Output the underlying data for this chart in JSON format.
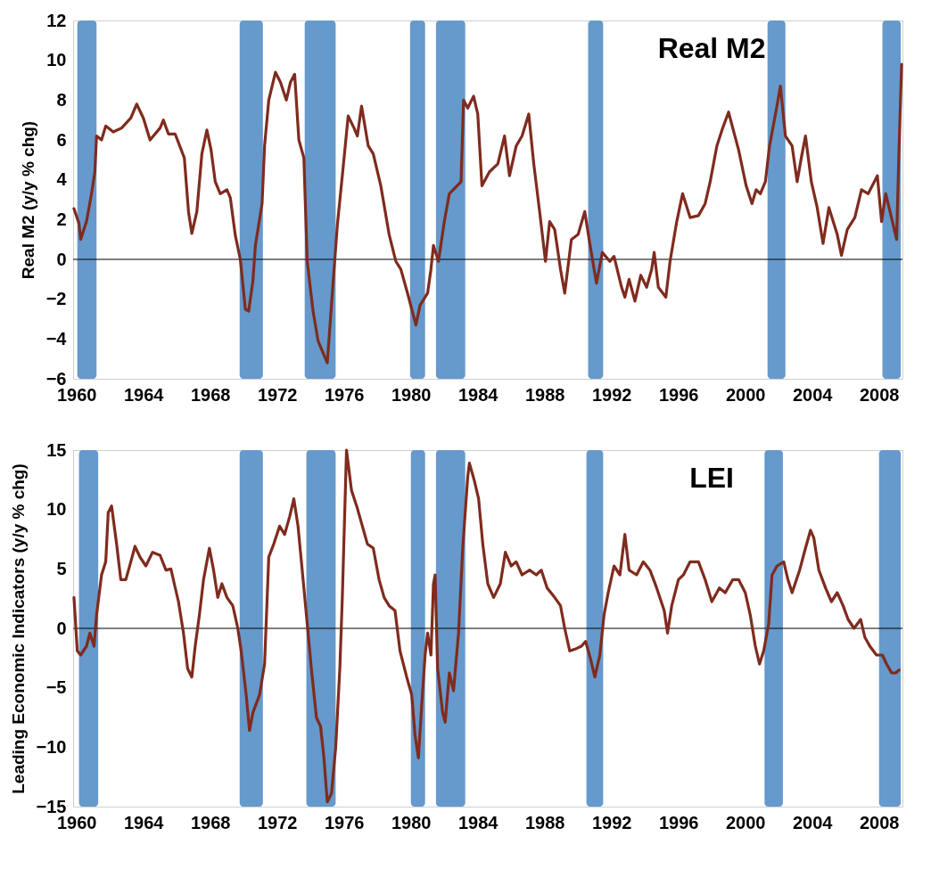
{
  "chart_data": [
    {
      "type": "line",
      "title": "Real M2",
      "ylabel": "Real M2 (y/y % chg)",
      "xlim": [
        1959.8,
        2009.4
      ],
      "xticks": [
        1960,
        1964,
        1968,
        1972,
        1976,
        1980,
        1984,
        1988,
        1992,
        1996,
        2000,
        2004,
        2008
      ],
      "ylim": [
        -6,
        12
      ],
      "yticks": [
        -6,
        -4,
        -2,
        0,
        2,
        4,
        6,
        8,
        10,
        12
      ],
      "ref_lines": [
        {
          "axis": "y",
          "value": 0,
          "color": "#000000"
        }
      ],
      "bands": [
        {
          "axis": "x",
          "from": 1960.05,
          "to": 1961.2,
          "color": "#6699cc"
        },
        {
          "axis": "x",
          "from": 1969.76,
          "to": 1971.15,
          "color": "#6699cc"
        },
        {
          "axis": "x",
          "from": 1973.65,
          "to": 1975.5,
          "color": "#6699cc"
        },
        {
          "axis": "x",
          "from": 1979.95,
          "to": 1980.85,
          "color": "#6699cc"
        },
        {
          "axis": "x",
          "from": 1981.5,
          "to": 1983.25,
          "color": "#6699cc"
        },
        {
          "axis": "x",
          "from": 1990.6,
          "to": 1991.5,
          "color": "#6699cc"
        },
        {
          "axis": "x",
          "from": 2001.33,
          "to": 2002.4,
          "color": "#6699cc"
        },
        {
          "axis": "x",
          "from": 2008.2,
          "to": 2009.3,
          "color": "#6699cc"
        }
      ],
      "series": [
        {
          "color": "#7f2b1e",
          "x": [
            1959.85,
            1960.15,
            1960.25,
            1960.6,
            1960.9,
            1961.1,
            1961.2,
            1961.5,
            1961.75,
            1962.2,
            1962.7,
            1963.25,
            1963.6,
            1964.0,
            1964.4,
            1965.0,
            1965.2,
            1965.5,
            1965.9,
            1966.45,
            1966.7,
            1966.9,
            1967.2,
            1967.5,
            1967.8,
            1968.05,
            1968.3,
            1968.6,
            1969.0,
            1969.2,
            1969.5,
            1969.8,
            1970.1,
            1970.3,
            1970.55,
            1970.7,
            1971.1,
            1971.25,
            1971.5,
            1971.9,
            1972.2,
            1972.55,
            1972.8,
            1973.05,
            1973.3,
            1973.6,
            1973.8,
            1974.15,
            1974.45,
            1974.8,
            1975.0,
            1975.25,
            1975.6,
            1975.9,
            1976.25,
            1976.6,
            1976.8,
            1977.05,
            1977.45,
            1977.75,
            1978.2,
            1978.7,
            1979.1,
            1979.4,
            1979.8,
            1980.3,
            1980.55,
            1981.0,
            1981.2,
            1981.35,
            1981.65,
            1982.0,
            1982.3,
            1982.65,
            1983.0,
            1983.15,
            1983.4,
            1983.75,
            1984.0,
            1984.25,
            1984.7,
            1985.2,
            1985.6,
            1985.9,
            1986.3,
            1986.65,
            1987.05,
            1987.35,
            1987.7,
            1988.05,
            1988.3,
            1988.6,
            1988.95,
            1989.2,
            1989.6,
            1990.0,
            1990.4,
            1990.7,
            1991.1,
            1991.45,
            1991.9,
            1992.15,
            1992.6,
            1992.8,
            1993.05,
            1993.4,
            1993.75,
            1994.1,
            1994.4,
            1994.55,
            1994.8,
            1995.25,
            1995.5,
            1995.9,
            1996.25,
            1996.7,
            1997.2,
            1997.6,
            1997.9,
            1998.3,
            1998.65,
            1999.0,
            1999.25,
            1999.6,
            2000.05,
            2000.4,
            2000.65,
            2000.9,
            2001.2,
            2001.45,
            2001.85,
            2002.1,
            2002.4,
            2002.8,
            2003.1,
            2003.35,
            2003.6,
            2003.95,
            2004.3,
            2004.65,
            2005.0,
            2005.5,
            2005.75,
            2006.1,
            2006.55,
            2006.95,
            2007.35,
            2007.9,
            2008.15,
            2008.4,
            2008.8,
            2009.05,
            2009.2,
            2009.35
          ],
          "values": [
            2.55,
            1.8,
            1.0,
            1.9,
            3.3,
            4.4,
            6.2,
            6.0,
            6.7,
            6.4,
            6.6,
            7.1,
            7.8,
            7.1,
            6.0,
            6.6,
            7.0,
            6.3,
            6.3,
            5.1,
            2.4,
            1.3,
            2.4,
            5.3,
            6.5,
            5.5,
            3.9,
            3.3,
            3.5,
            3.1,
            1.2,
            0.0,
            -2.5,
            -2.6,
            -1.1,
            0.7,
            2.8,
            5.7,
            8.0,
            9.4,
            8.9,
            8.0,
            8.9,
            9.3,
            6.0,
            5.1,
            -0.1,
            -2.6,
            -4.1,
            -4.8,
            -5.2,
            -2.3,
            1.7,
            4.2,
            7.2,
            6.6,
            6.2,
            7.7,
            5.7,
            5.3,
            3.7,
            1.25,
            -0.1,
            -0.5,
            -1.7,
            -3.3,
            -2.3,
            -1.7,
            -0.5,
            0.7,
            -0.1,
            1.9,
            3.3,
            3.6,
            3.9,
            8.0,
            7.6,
            8.2,
            7.3,
            3.7,
            4.4,
            4.8,
            6.2,
            4.2,
            5.7,
            6.2,
            7.3,
            4.8,
            2.4,
            -0.1,
            1.9,
            1.5,
            -0.5,
            -1.7,
            1.0,
            1.25,
            2.4,
            0.8,
            -1.2,
            0.35,
            -0.1,
            0.15,
            -1.4,
            -1.9,
            -1.0,
            -2.1,
            -0.8,
            -1.4,
            -0.5,
            0.35,
            -1.4,
            -1.9,
            -0.1,
            1.9,
            3.3,
            2.1,
            2.2,
            2.8,
            3.9,
            5.7,
            6.6,
            7.4,
            6.6,
            5.5,
            3.7,
            2.8,
            3.5,
            3.3,
            3.9,
            5.7,
            7.5,
            8.7,
            6.2,
            5.7,
            3.9,
            5.1,
            6.2,
            3.9,
            2.6,
            0.8,
            2.6,
            1.25,
            0.2,
            1.5,
            2.1,
            3.5,
            3.3,
            4.2,
            1.9,
            3.3,
            1.9,
            1.0,
            5.7,
            9.8
          ]
        }
      ]
    },
    {
      "type": "line",
      "title": "LEI",
      "ylabel": "Leading Economic Indicators (y/y % chg)",
      "xlim": [
        1959.8,
        2009.4
      ],
      "xticks": [
        1960,
        1964,
        1968,
        1972,
        1976,
        1980,
        1984,
        1988,
        1992,
        1996,
        2000,
        2004,
        2008
      ],
      "ylim": [
        -15,
        15
      ],
      "yticks": [
        -15,
        -10,
        -5,
        0,
        5,
        10,
        15
      ],
      "ref_lines": [
        {
          "axis": "y",
          "value": 0,
          "color": "#000000"
        }
      ],
      "bands": [
        {
          "axis": "x",
          "from": 1960.15,
          "to": 1961.3,
          "color": "#6699cc"
        },
        {
          "axis": "x",
          "from": 1969.76,
          "to": 1971.15,
          "color": "#6699cc"
        },
        {
          "axis": "x",
          "from": 1973.75,
          "to": 1975.5,
          "color": "#6699cc"
        },
        {
          "axis": "x",
          "from": 1980.0,
          "to": 1980.85,
          "color": "#6699cc"
        },
        {
          "axis": "x",
          "from": 1981.5,
          "to": 1983.25,
          "color": "#6699cc"
        },
        {
          "axis": "x",
          "from": 1990.5,
          "to": 1991.5,
          "color": "#6699cc"
        },
        {
          "axis": "x",
          "from": 2001.15,
          "to": 2002.25,
          "color": "#6699cc"
        },
        {
          "axis": "x",
          "from": 2008.0,
          "to": 2009.3,
          "color": "#6699cc"
        }
      ],
      "series": [
        {
          "color": "#7f2b1e",
          "x": [
            1959.85,
            1960.05,
            1960.25,
            1960.6,
            1960.8,
            1961.05,
            1961.2,
            1961.5,
            1961.75,
            1961.9,
            1962.1,
            1962.4,
            1962.65,
            1962.95,
            1963.25,
            1963.5,
            1963.8,
            1964.15,
            1964.55,
            1965.0,
            1965.35,
            1965.65,
            1965.85,
            1966.1,
            1966.4,
            1966.65,
            1966.9,
            1967.1,
            1967.35,
            1967.6,
            1967.95,
            1968.2,
            1968.45,
            1968.7,
            1969.0,
            1969.35,
            1969.65,
            1969.85,
            1970.15,
            1970.35,
            1970.55,
            1970.95,
            1971.25,
            1971.5,
            1971.8,
            1972.15,
            1972.45,
            1972.75,
            1973.0,
            1973.25,
            1973.5,
            1973.8,
            1974.05,
            1974.35,
            1974.6,
            1974.8,
            1975.0,
            1975.25,
            1975.5,
            1975.75,
            1975.9,
            1976.15,
            1976.45,
            1976.8,
            1977.1,
            1977.4,
            1977.75,
            1978.1,
            1978.4,
            1978.7,
            1979.05,
            1979.35,
            1979.75,
            1980.05,
            1980.25,
            1980.45,
            1980.65,
            1980.85,
            1981.0,
            1981.2,
            1981.35,
            1981.45,
            1981.6,
            1981.9,
            1982.05,
            1982.3,
            1982.55,
            1982.85,
            1983.1,
            1983.4,
            1983.5,
            1983.8,
            1984.05,
            1984.3,
            1984.6,
            1984.95,
            1985.35,
            1985.65,
            1986.0,
            1986.3,
            1986.65,
            1987.1,
            1987.5,
            1987.8,
            1988.15,
            1988.6,
            1988.95,
            1989.2,
            1989.5,
            1989.9,
            1990.2,
            1990.45,
            1990.75,
            1991.0,
            1991.3,
            1991.55,
            1991.8,
            1992.15,
            1992.5,
            1992.8,
            1993.05,
            1993.5,
            1993.9,
            1994.3,
            1994.7,
            1995.15,
            1995.35,
            1995.6,
            1996.0,
            1996.3,
            1996.7,
            1997.2,
            1997.6,
            1998.0,
            1998.45,
            1998.8,
            1999.25,
            1999.6,
            2000.0,
            2000.3,
            2000.6,
            2000.85,
            2001.1,
            2001.4,
            2001.6,
            2001.9,
            2002.3,
            2002.55,
            2002.8,
            2003.25,
            2003.6,
            2003.9,
            2004.1,
            2004.4,
            2004.8,
            2005.15,
            2005.5,
            2005.85,
            2006.15,
            2006.5,
            2006.9,
            2007.15,
            2007.45,
            2007.85,
            2008.2,
            2008.45,
            2008.75,
            2009.0,
            2009.2
          ],
          "values": [
            2.6,
            -1.9,
            -2.25,
            -1.5,
            -0.4,
            -1.5,
            1.1,
            4.5,
            5.6,
            9.75,
            10.3,
            7.1,
            4.1,
            4.1,
            5.6,
            6.9,
            6.0,
            5.25,
            6.4,
            6.15,
            4.9,
            5.0,
            3.75,
            2.25,
            -0.4,
            -3.4,
            -4.1,
            -1.5,
            1.1,
            4.1,
            6.75,
            4.9,
            2.6,
            3.75,
            2.6,
            1.9,
            0.0,
            -1.9,
            -5.6,
            -8.6,
            -7.1,
            -5.6,
            -3.0,
            6.0,
            7.1,
            8.6,
            7.9,
            9.4,
            10.9,
            8.6,
            4.9,
            0.4,
            -3.4,
            -7.5,
            -8.25,
            -10.9,
            -14.6,
            -13.9,
            -10.1,
            -3.4,
            2.6,
            15.0,
            11.6,
            10.1,
            8.6,
            7.1,
            6.75,
            4.1,
            2.6,
            1.9,
            1.5,
            -1.9,
            -4.1,
            -5.6,
            -9.0,
            -10.9,
            -6.4,
            -2.25,
            -0.4,
            -2.25,
            3.75,
            4.5,
            -3.4,
            -7.1,
            -7.9,
            -3.75,
            -5.25,
            -0.4,
            6.75,
            12.75,
            13.9,
            12.4,
            10.9,
            7.1,
            3.75,
            2.6,
            3.75,
            6.4,
            5.25,
            5.6,
            4.5,
            4.9,
            4.5,
            4.9,
            3.4,
            2.6,
            1.9,
            0.0,
            -1.9,
            -1.7,
            -1.5,
            -1.1,
            -2.6,
            -4.1,
            -2.25,
            1.1,
            3.0,
            5.25,
            4.5,
            7.9,
            4.9,
            4.5,
            5.6,
            4.9,
            3.4,
            1.5,
            -0.4,
            1.9,
            4.1,
            4.5,
            5.6,
            5.6,
            4.1,
            2.25,
            3.4,
            3.0,
            4.1,
            4.1,
            3.0,
            1.1,
            -1.5,
            -3.0,
            -1.9,
            0.4,
            4.5,
            5.25,
            5.6,
            4.1,
            3.0,
            4.9,
            6.75,
            8.25,
            7.6,
            4.9,
            3.4,
            2.25,
            3.0,
            1.9,
            0.75,
            0.0,
            0.75,
            -0.75,
            -1.5,
            -2.25,
            -2.25,
            -3.0,
            -3.75,
            -3.75,
            -3.5
          ]
        }
      ]
    }
  ]
}
